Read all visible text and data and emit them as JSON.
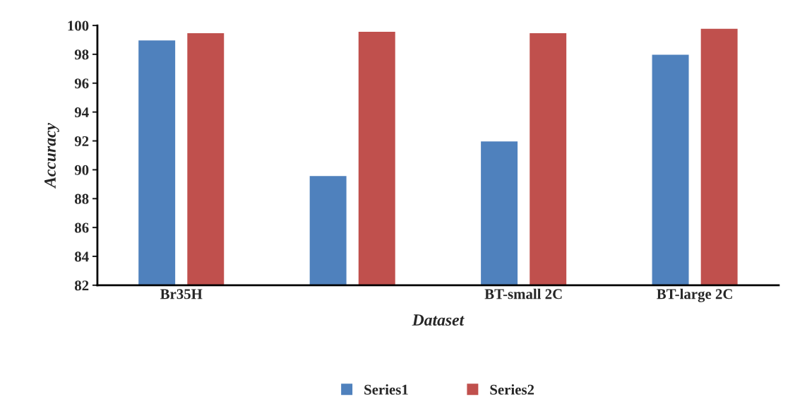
{
  "chart_data": {
    "type": "bar",
    "xlabel": "Dataset",
    "ylabel": "Accuracy",
    "categories": [
      "Br35H",
      null,
      "BT-small 2C",
      "BT-large 2C"
    ],
    "series": [
      {
        "name": "Series1",
        "color": "#4f81bd",
        "values": [
          99.0,
          89.6,
          92.0,
          98.0
        ]
      },
      {
        "name": "Series2",
        "color": "#c0504d",
        "values": [
          99.5,
          99.6,
          99.5,
          99.8
        ]
      }
    ],
    "ylim": [
      82,
      100
    ],
    "yticks": [
      82,
      84,
      86,
      88,
      90,
      92,
      94,
      96,
      98,
      100
    ],
    "grid": false,
    "legend": "bottom"
  }
}
